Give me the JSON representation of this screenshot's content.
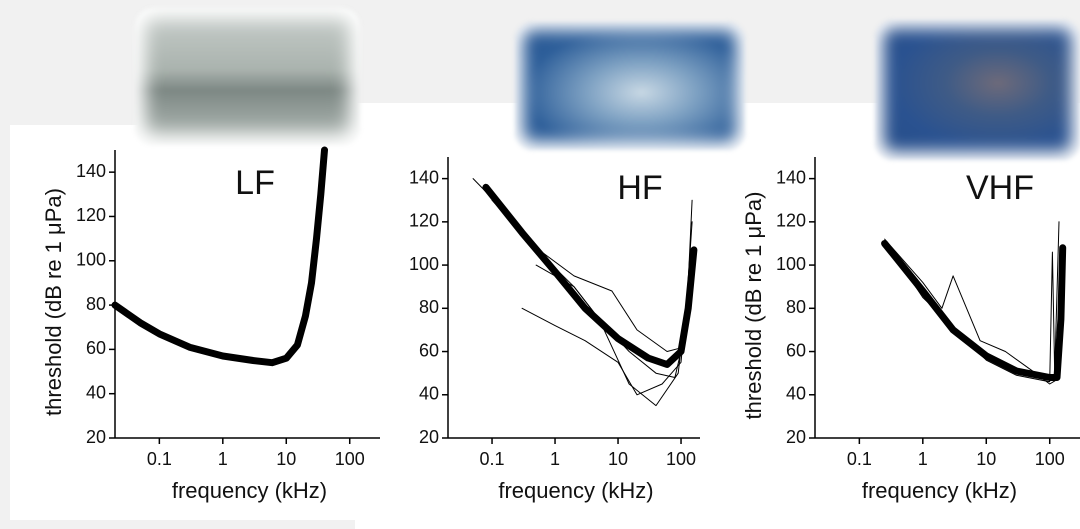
{
  "chart_data": [
    {
      "type": "line",
      "title": "LF",
      "x_label": "frequency (kHz)",
      "y_label": "threshold (dB re 1 μPa)",
      "xscale": "log",
      "xlim": [
        0.02,
        300
      ],
      "xticks": [
        0.1,
        1,
        10,
        100
      ],
      "ylim": [
        20,
        150
      ],
      "yticks": [
        20,
        40,
        60,
        80,
        100,
        120,
        140
      ],
      "series": [
        {
          "color": "#000000",
          "linewidth": 7,
          "x": [
            0.02,
            0.05,
            0.1,
            0.3,
            1,
            3,
            6,
            10,
            15,
            20,
            25,
            30,
            35,
            40
          ],
          "values": [
            80,
            72,
            67,
            61,
            57,
            55,
            54,
            56,
            62,
            75,
            90,
            110,
            130,
            150
          ]
        }
      ]
    },
    {
      "type": "line",
      "title": "HF",
      "x_label": "frequency (kHz)",
      "xscale": "log",
      "xlim": [
        0.02,
        200
      ],
      "xticks": [
        0.1,
        1,
        10,
        100
      ],
      "ylim": [
        20,
        150
      ],
      "yticks": [
        20,
        40,
        60,
        80,
        100,
        120,
        140
      ],
      "series": [
        {
          "color": "#000000",
          "linewidth": 1,
          "x": [
            0.05,
            0.2,
            0.6,
            2,
            5,
            15,
            40,
            80,
            120,
            150
          ],
          "values": [
            140,
            122,
            105,
            90,
            75,
            60,
            50,
            48,
            70,
            130
          ]
        },
        {
          "color": "#000000",
          "linewidth": 1,
          "x": [
            0.3,
            1,
            3,
            10,
            20,
            50,
            100,
            140
          ],
          "values": [
            80,
            72,
            65,
            55,
            40,
            45,
            55,
            100
          ]
        },
        {
          "color": "#000000",
          "linewidth": 1,
          "x": [
            0.1,
            0.5,
            2,
            8,
            20,
            60,
            110,
            150
          ],
          "values": [
            130,
            108,
            95,
            88,
            70,
            60,
            62,
            120
          ]
        },
        {
          "color": "#000000",
          "linewidth": 1,
          "x": [
            0.5,
            2,
            5,
            15,
            40,
            90,
            130
          ],
          "values": [
            100,
            90,
            75,
            45,
            35,
            50,
            90
          ]
        },
        {
          "color": "#000000",
          "linewidth": 7,
          "x": [
            0.08,
            0.3,
            1,
            3,
            10,
            30,
            60,
            100,
            130,
            160
          ],
          "values": [
            136,
            115,
            97,
            80,
            66,
            57,
            54,
            60,
            80,
            107
          ]
        }
      ]
    },
    {
      "type": "line",
      "title": "VHF",
      "x_label": "frequency (kHz)",
      "y_label": "threshold (dB re 1 μPa)",
      "xscale": "log",
      "xlim": [
        0.02,
        300
      ],
      "xticks": [
        0.1,
        1,
        10,
        100
      ],
      "ylim": [
        20,
        150
      ],
      "yticks": [
        20,
        40,
        60,
        80,
        100,
        120,
        140
      ],
      "series": [
        {
          "color": "#000000",
          "linewidth": 1,
          "x": [
            0.25,
            1,
            2,
            3,
            8,
            20,
            60,
            100,
            130
          ],
          "values": [
            112,
            92,
            80,
            95,
            65,
            60,
            50,
            45,
            47
          ]
        },
        {
          "color": "#000000",
          "linewidth": 1,
          "x": [
            0.3,
            1,
            4,
            10,
            30,
            100,
            110,
            120,
            140
          ],
          "values": [
            108,
            85,
            68,
            56,
            49,
            46,
            106,
            50,
            120
          ]
        },
        {
          "color": "#000000",
          "linewidth": 7,
          "x": [
            0.25,
            1,
            3,
            10,
            30,
            100,
            130,
            150,
            160
          ],
          "values": [
            110,
            88,
            70,
            58,
            51,
            48,
            48,
            75,
            108
          ]
        }
      ]
    }
  ]
}
